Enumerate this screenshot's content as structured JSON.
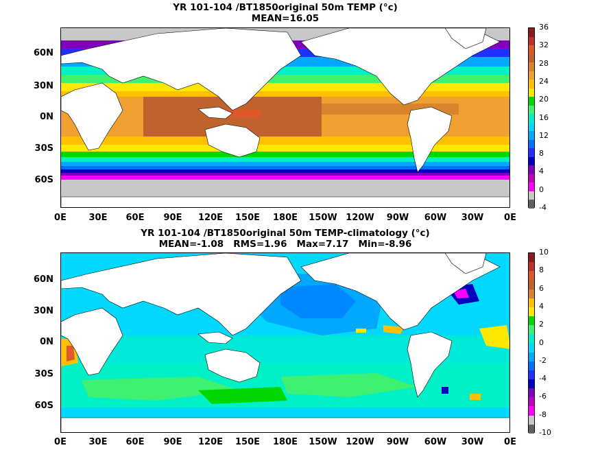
{
  "panel_top": {
    "title_line1": "YR 101-104 /BT1850original 50m TEMP (°c)",
    "title_line2": "MEAN=16.05",
    "lat_labels": [
      "60N",
      "30N",
      "0N",
      "30S",
      "60S"
    ],
    "lon_labels": [
      "0E",
      "30E",
      "60E",
      "90E",
      "120E",
      "150E",
      "180E",
      "150W",
      "120W",
      "90W",
      "60W",
      "30W",
      "0E"
    ],
    "colorbar_labels": [
      "36",
      "32",
      "28",
      "24",
      "20",
      "16",
      "12",
      "8",
      "4",
      "0",
      "-4"
    ],
    "colorbar_colors": [
      "#8b1a1a",
      "#c0302a",
      "#e0582a",
      "#c0622e",
      "#d7842c",
      "#f0a030",
      "#ffc000",
      "#ffe800",
      "#00d800",
      "#40f070",
      "#00f0c8",
      "#00d8ff",
      "#00a8ff",
      "#0070ff",
      "#2030ff",
      "#0000c0",
      "#8000c0",
      "#c000c0",
      "#ff00ff",
      "#c8c8c8",
      "#606060"
    ]
  },
  "panel_bottom": {
    "title_line1": "YR 101-104 /BT1850original 50m TEMP-climatology (°c)",
    "title_line2": "MEAN=-1.08   RMS=1.96   Max=7.17   Min=-8.96",
    "lat_labels": [
      "60N",
      "30N",
      "0N",
      "30S",
      "60S"
    ],
    "lon_labels": [
      "0E",
      "30E",
      "60E",
      "90E",
      "120E",
      "150E",
      "180E",
      "150W",
      "120W",
      "90W",
      "60W",
      "30W",
      "0E"
    ],
    "colorbar_labels": [
      "10",
      "8",
      "6",
      "4",
      "2",
      "0",
      "-2",
      "-4",
      "-6",
      "-8",
      "-10"
    ],
    "colorbar_colors": [
      "#8b1a1a",
      "#c0302a",
      "#e0582a",
      "#c0622e",
      "#d7842c",
      "#ffc000",
      "#ffe800",
      "#00d800",
      "#40f070",
      "#00f0c8",
      "#00d8ff",
      "#00a8ff",
      "#0070ff",
      "#2030ff",
      "#0000c0",
      "#8000c0",
      "#c000c0",
      "#ff00ff",
      "#c8c8c8",
      "#606060"
    ]
  }
}
